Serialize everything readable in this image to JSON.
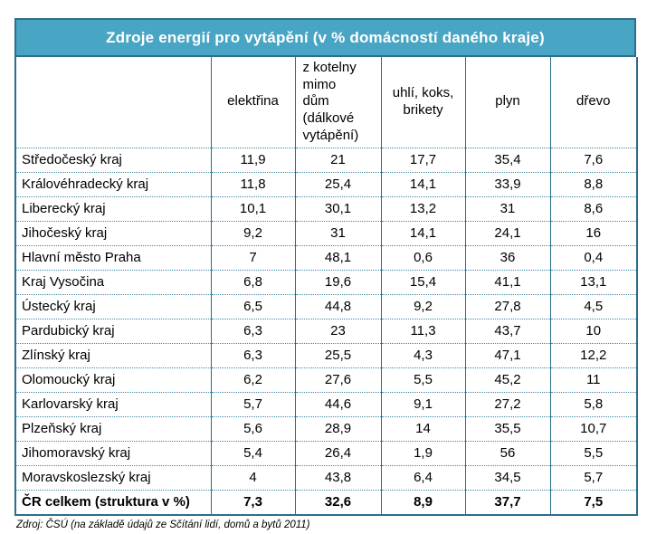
{
  "title": "Zdroje energií pro vytápění (v % domácností daného kraje)",
  "table": {
    "col_headers": [
      "",
      "elektřina",
      "z kotelny\nmimo\ndům\n(dálkové\nvytápění)",
      "uhlí, koks,\nbrikety",
      "plyn",
      "dřevo"
    ],
    "rows": [
      {
        "label": "Středočeský kraj",
        "values": [
          "11,9",
          "21",
          "17,7",
          "35,4",
          "7,6"
        ]
      },
      {
        "label": "Královéhradecký kraj",
        "values": [
          "11,8",
          "25,4",
          "14,1",
          "33,9",
          "8,8"
        ]
      },
      {
        "label": "Liberecký kraj",
        "values": [
          "10,1",
          "30,1",
          "13,2",
          "31",
          "8,6"
        ]
      },
      {
        "label": "Jihočeský kraj",
        "values": [
          "9,2",
          "31",
          "14,1",
          "24,1",
          "16"
        ]
      },
      {
        "label": "Hlavní město Praha",
        "values": [
          "7",
          "48,1",
          "0,6",
          "36",
          "0,4"
        ]
      },
      {
        "label": "Kraj Vysočina",
        "values": [
          "6,8",
          "19,6",
          "15,4",
          "41,1",
          "13,1"
        ]
      },
      {
        "label": "Ústecký kraj",
        "values": [
          "6,5",
          "44,8",
          "9,2",
          "27,8",
          "4,5"
        ]
      },
      {
        "label": "Pardubický kraj",
        "values": [
          "6,3",
          "23",
          "11,3",
          "43,7",
          "10"
        ]
      },
      {
        "label": "Zlínský kraj",
        "values": [
          "6,3",
          "25,5",
          "4,3",
          "47,1",
          "12,2"
        ]
      },
      {
        "label": "Olomoucký kraj",
        "values": [
          "6,2",
          "27,6",
          "5,5",
          "45,2",
          "11"
        ]
      },
      {
        "label": "Karlovarský kraj",
        "values": [
          "5,7",
          "44,6",
          "9,1",
          "27,2",
          "5,8"
        ]
      },
      {
        "label": "Plzeňský kraj",
        "values": [
          "5,6",
          "28,9",
          "14",
          "35,5",
          "10,7"
        ]
      },
      {
        "label": "Jihomoravský kraj",
        "values": [
          "5,4",
          "26,4",
          "1,9",
          "56",
          "5,5"
        ]
      },
      {
        "label": "Moravskoslezský kraj",
        "values": [
          "4",
          "43,8",
          "6,4",
          "34,5",
          "5,7"
        ]
      }
    ],
    "total": {
      "label": "ČR celkem (struktura v %)",
      "values": [
        "7,3",
        "32,6",
        "8,9",
        "37,7",
        "7,5"
      ]
    }
  },
  "footer": "Zdroj: ČSÚ (na základě údajů ze Sčítání lidí, domů a bytů 2011)",
  "colors": {
    "header_bg": "#49a5c4",
    "border": "#2e6d8c",
    "dotted_line": "#3f86a6",
    "title_text": "#ffffff",
    "body_text": "#000000"
  },
  "chart_data": {
    "type": "table",
    "title": "Zdroje energií pro vytápění (v % domácností daného kraje)",
    "categories": [
      "Středočeský kraj",
      "Královéhradecký kraj",
      "Liberecký kraj",
      "Jihočeský kraj",
      "Hlavní město Praha",
      "Kraj Vysočina",
      "Ústecký kraj",
      "Pardubický kraj",
      "Zlínský kraj",
      "Olomoucký kraj",
      "Karlovarský kraj",
      "Plzeňský kraj",
      "Jihomoravský kraj",
      "Moravskoslezský kraj"
    ],
    "series": [
      {
        "name": "elektřina",
        "values": [
          11.9,
          11.8,
          10.1,
          9.2,
          7,
          6.8,
          6.5,
          6.3,
          6.3,
          6.2,
          5.7,
          5.6,
          5.4,
          4
        ],
        "total_cr": 7.3
      },
      {
        "name": "z kotelny mimo dům (dálkové vytápění)",
        "values": [
          21,
          25.4,
          30.1,
          31,
          48.1,
          19.6,
          44.8,
          23,
          25.5,
          27.6,
          44.6,
          28.9,
          26.4,
          43.8
        ],
        "total_cr": 32.6
      },
      {
        "name": "uhlí, koks, brikety",
        "values": [
          17.7,
          14.1,
          13.2,
          14.1,
          0.6,
          15.4,
          9.2,
          11.3,
          4.3,
          5.5,
          9.1,
          14,
          1.9,
          6.4
        ],
        "total_cr": 8.9
      },
      {
        "name": "plyn",
        "values": [
          35.4,
          33.9,
          31,
          24.1,
          36,
          41.1,
          27.8,
          43.7,
          47.1,
          45.2,
          27.2,
          35.5,
          56,
          34.5
        ],
        "total_cr": 37.7
      },
      {
        "name": "dřevo",
        "values": [
          7.6,
          8.8,
          8.6,
          16,
          0.4,
          13.1,
          4.5,
          10,
          12.2,
          11,
          5.8,
          10.7,
          5.5,
          5.7
        ],
        "total_cr": 7.5
      }
    ],
    "total_row_label": "ČR celkem (struktura v %)",
    "units": "% domácností daného kraje",
    "source": "Zdroj: ČSÚ (na základě údajů ze Sčítání lidí, domů a bytů 2011)"
  }
}
